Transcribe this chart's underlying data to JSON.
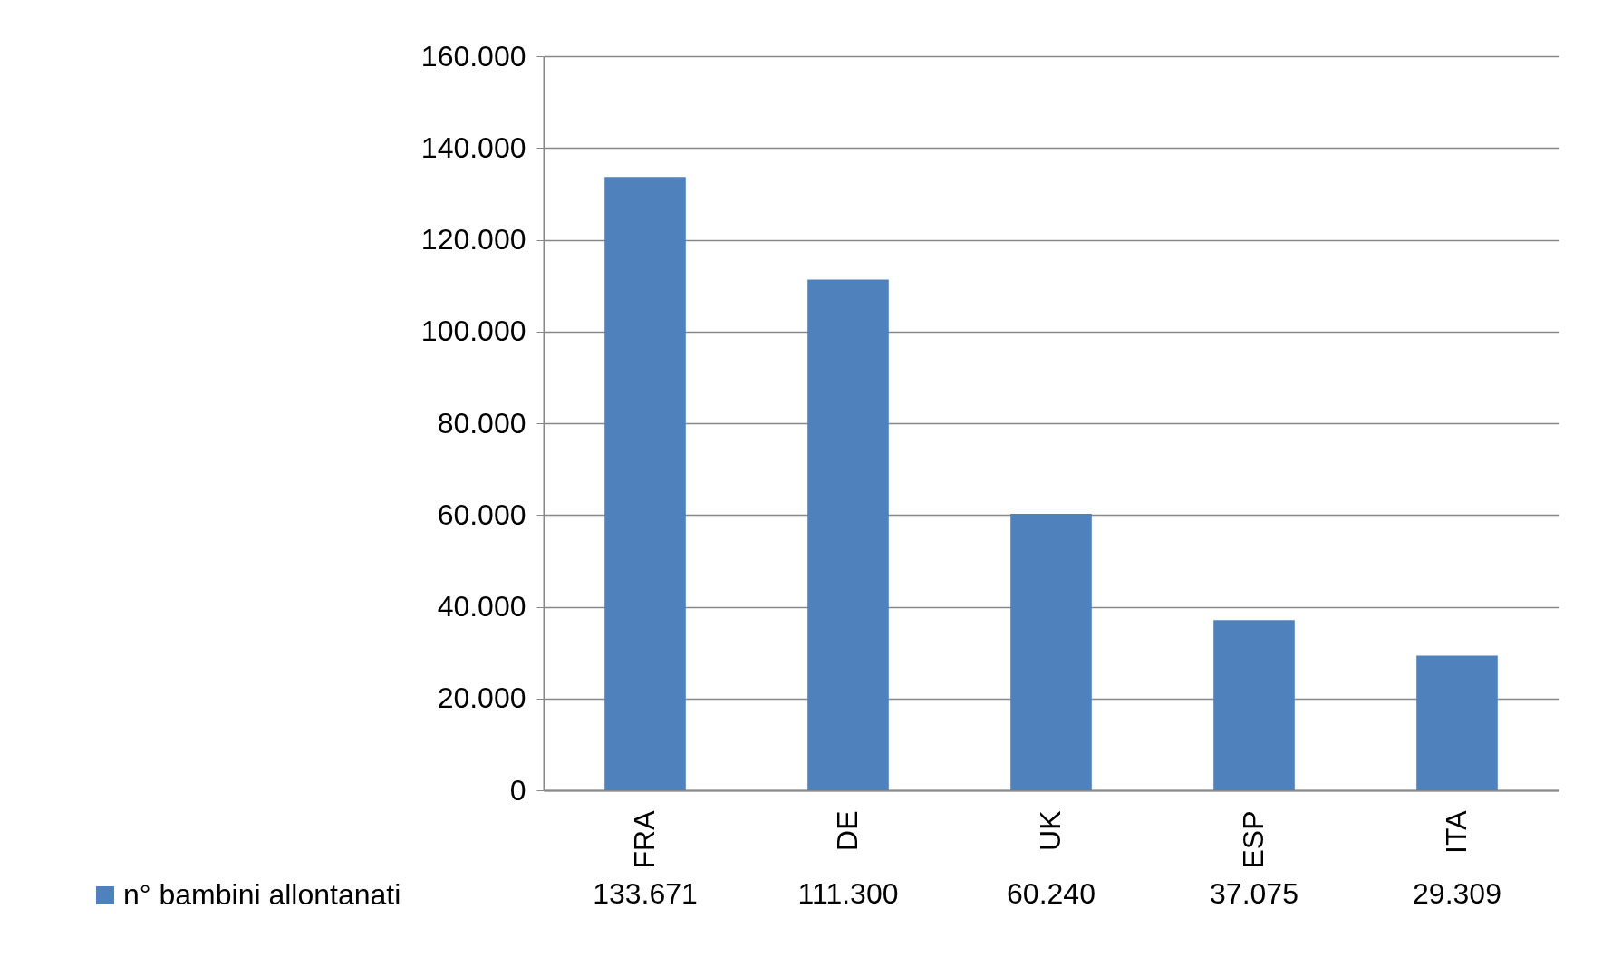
{
  "chart_data": {
    "type": "bar",
    "categories": [
      "FRA",
      "DE",
      "UK",
      "ESP",
      "ITA"
    ],
    "series": [
      {
        "name": "n° bambini allontanati",
        "color": "#4f81bd",
        "values": [
          133671,
          111300,
          60240,
          37075,
          29309
        ],
        "value_labels": [
          "133.671",
          "111.300",
          "60.240",
          "37.075",
          "29.309"
        ]
      }
    ],
    "ylim": [
      0,
      160000
    ],
    "yticks": [
      0,
      {
        "value": 20000,
        "label": "20.000"
      },
      {
        "value": 40000,
        "label": "40.000"
      },
      {
        "value": 60000,
        "label": "60.000"
      },
      {
        "value": 80000,
        "label": "80.000"
      },
      {
        "value": 100000,
        "label": "100.000"
      },
      {
        "value": 120000,
        "label": "120.000"
      },
      {
        "value": 140000,
        "label": "140.000"
      },
      {
        "value": 160000,
        "label": "160.000"
      }
    ],
    "grid": "y",
    "legend": "bottom left"
  }
}
